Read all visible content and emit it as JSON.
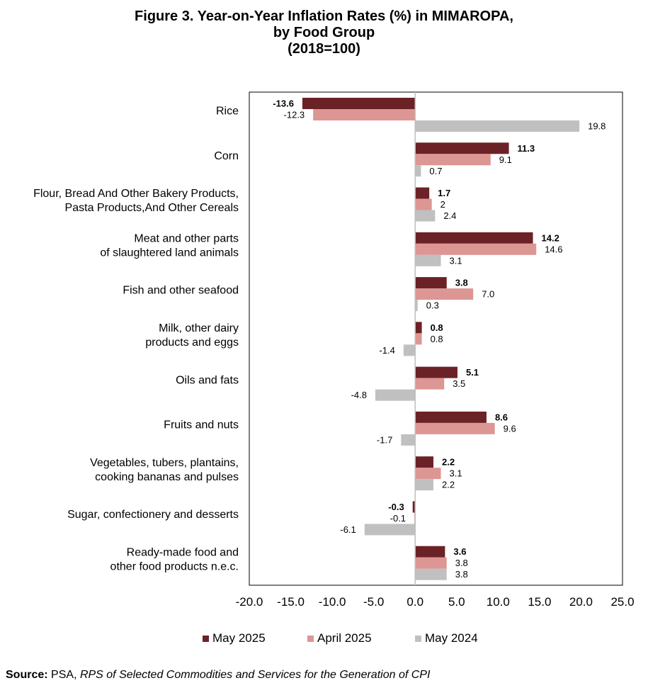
{
  "title": {
    "line1": "Figure 3. Year-on-Year Inflation Rates (%) in MIMAROPA,",
    "line2": "by Food Group",
    "line3": "(2018=100)"
  },
  "chart_data": {
    "type": "bar",
    "orientation": "horizontal",
    "title": "Figure 3. Year-on-Year Inflation Rates (%) in MIMAROPA, by Food Group (2018=100)",
    "categories": [
      [
        "Rice"
      ],
      [
        "Corn"
      ],
      [
        "Flour, Bread And Other Bakery Products,",
        "Pasta Products,And Other Cereals"
      ],
      [
        "Meat and other parts",
        "of slaughtered land animals"
      ],
      [
        "Fish and other seafood"
      ],
      [
        "Milk, other dairy",
        "products and eggs"
      ],
      [
        "Oils and fats"
      ],
      [
        "Fruits and nuts"
      ],
      [
        "Vegetables, tubers, plantains,",
        "cooking bananas and pulses"
      ],
      [
        "Sugar, confectionery and desserts"
      ],
      [
        "Ready-made food and",
        "other food products n.e.c."
      ]
    ],
    "series": [
      {
        "name": "May 2025",
        "color": "#6b2226",
        "bold_labels": true,
        "values": [
          -13.6,
          11.3,
          1.7,
          14.2,
          3.8,
          0.8,
          5.1,
          8.6,
          2.2,
          -0.3,
          3.6
        ],
        "labels": [
          "-13.6",
          "11.3",
          "1.7",
          "14.2",
          "3.8",
          "0.8",
          "5.1",
          "8.6",
          "2.2",
          "-0.3",
          "3.6"
        ]
      },
      {
        "name": "April 2025",
        "color": "#dc9694",
        "bold_labels": false,
        "values": [
          -12.3,
          9.1,
          2,
          14.6,
          7.0,
          0.8,
          3.5,
          9.6,
          3.1,
          -0.1,
          3.8
        ],
        "labels": [
          "-12.3",
          "9.1",
          "2",
          "14.6",
          "7.0",
          "0.8",
          "3.5",
          "9.6",
          "3.1",
          "-0.1",
          "3.8"
        ]
      },
      {
        "name": "May 2024",
        "color": "#c0c0c0",
        "bold_labels": false,
        "values": [
          19.8,
          0.7,
          2.4,
          3.1,
          0.3,
          -1.4,
          -4.8,
          -1.7,
          2.2,
          -6.1,
          3.8
        ],
        "labels": [
          "19.8",
          "0.7",
          "2.4",
          "3.1",
          "0.3",
          "-1.4",
          "-4.8",
          "-1.7",
          "2.2",
          "-6.1",
          "3.8"
        ]
      }
    ],
    "xlim": [
      -20,
      25
    ],
    "xticks": [
      "-20.0",
      "-15.0",
      "-10.0",
      "-5.0",
      "0.0",
      "5.0",
      "10.0",
      "15.0",
      "20.0",
      "25.0"
    ],
    "xtick_values": [
      -20,
      -15,
      -10,
      -5,
      0,
      5,
      10,
      15,
      20,
      25
    ],
    "grid": false,
    "legend_position": "bottom"
  },
  "source": {
    "label": "Source:",
    "text_plain": " PSA, ",
    "text_italic": "RPS of Selected Commodities and Services for the Generation of CPI"
  }
}
